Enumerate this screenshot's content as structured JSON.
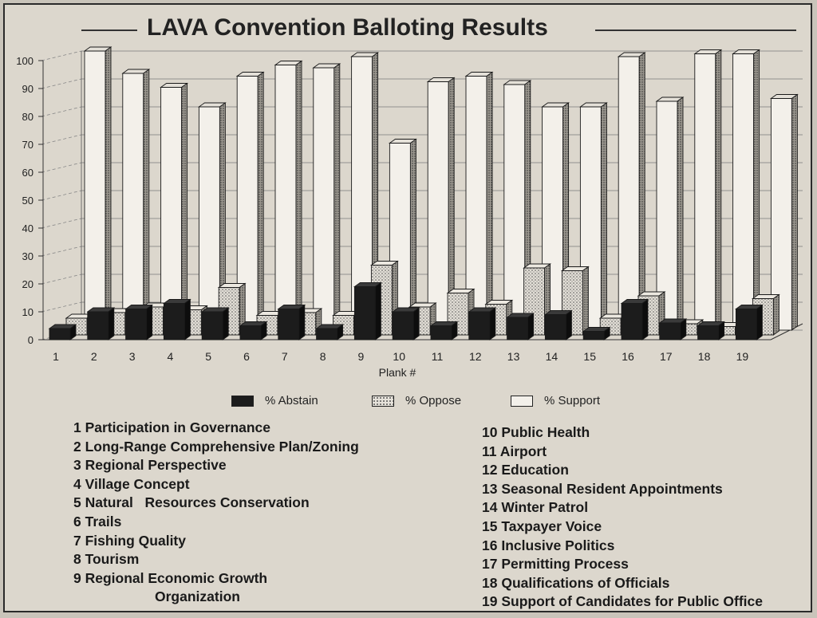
{
  "page": {
    "title": "LAVA Convention Balloting Results"
  },
  "legend": {
    "abstain": "% Abstain",
    "oppose": "% Oppose",
    "support": "% Support"
  },
  "colors": {
    "abstain": "#1c1c1c",
    "oppose": "#b9b4aa",
    "support": "#f3f0ea",
    "grid": "#6a6a6a",
    "paper": "#dcd7cd"
  },
  "planks_left": [
    "1 Participation in Governance",
    "2 Long-Range Comprehensive Plan/Zoning",
    "3 Regional Perspective",
    "4 Village Concept",
    "5 Natural   Resources Conservation",
    "6 Trails",
    "7 Fishing Quality",
    "8 Tourism",
    "9 Regional Economic Growth"
  ],
  "planks_left_continuation": "Organization",
  "planks_right": [
    "10 Public Health",
    "11 Airport",
    "12 Education",
    "13 Seasonal Resident Appointments",
    "14 Winter Patrol",
    "15 Taxpayer Voice",
    "16 Inclusive Politics",
    "17 Permitting Process",
    "18 Qualifications of Officials",
    "19 Support of Candidates for Public Office"
  ],
  "chart_data": {
    "type": "bar",
    "title": "LAVA Convention Balloting Results",
    "xlabel": "Plank #",
    "ylabel": "",
    "ylim": [
      0,
      100
    ],
    "yticks": [
      0,
      10,
      20,
      30,
      40,
      50,
      60,
      70,
      80,
      90,
      100
    ],
    "categories": [
      "1",
      "2",
      "3",
      "4",
      "5",
      "6",
      "7",
      "8",
      "9",
      "10",
      "11",
      "12",
      "13",
      "14",
      "15",
      "16",
      "17",
      "18",
      "19"
    ],
    "series": [
      {
        "name": "% Abstain",
        "values": [
          4,
          10,
          11,
          13,
          10,
          5,
          11,
          4,
          19,
          10,
          5,
          10,
          8,
          9,
          3,
          13,
          6,
          5,
          11
        ]
      },
      {
        "name": "% Oppose",
        "values": [
          6,
          8,
          10,
          9,
          17,
          7,
          8,
          7,
          25,
          10,
          15,
          11,
          24,
          23,
          6,
          14,
          4,
          3,
          13
        ]
      },
      {
        "name": "% Support",
        "values": [
          100,
          92,
          87,
          80,
          91,
          95,
          94,
          98,
          67,
          89,
          91,
          88,
          80,
          80,
          98,
          82,
          99,
          99,
          83
        ]
      }
    ],
    "grid": true,
    "legend_position": "bottom"
  }
}
